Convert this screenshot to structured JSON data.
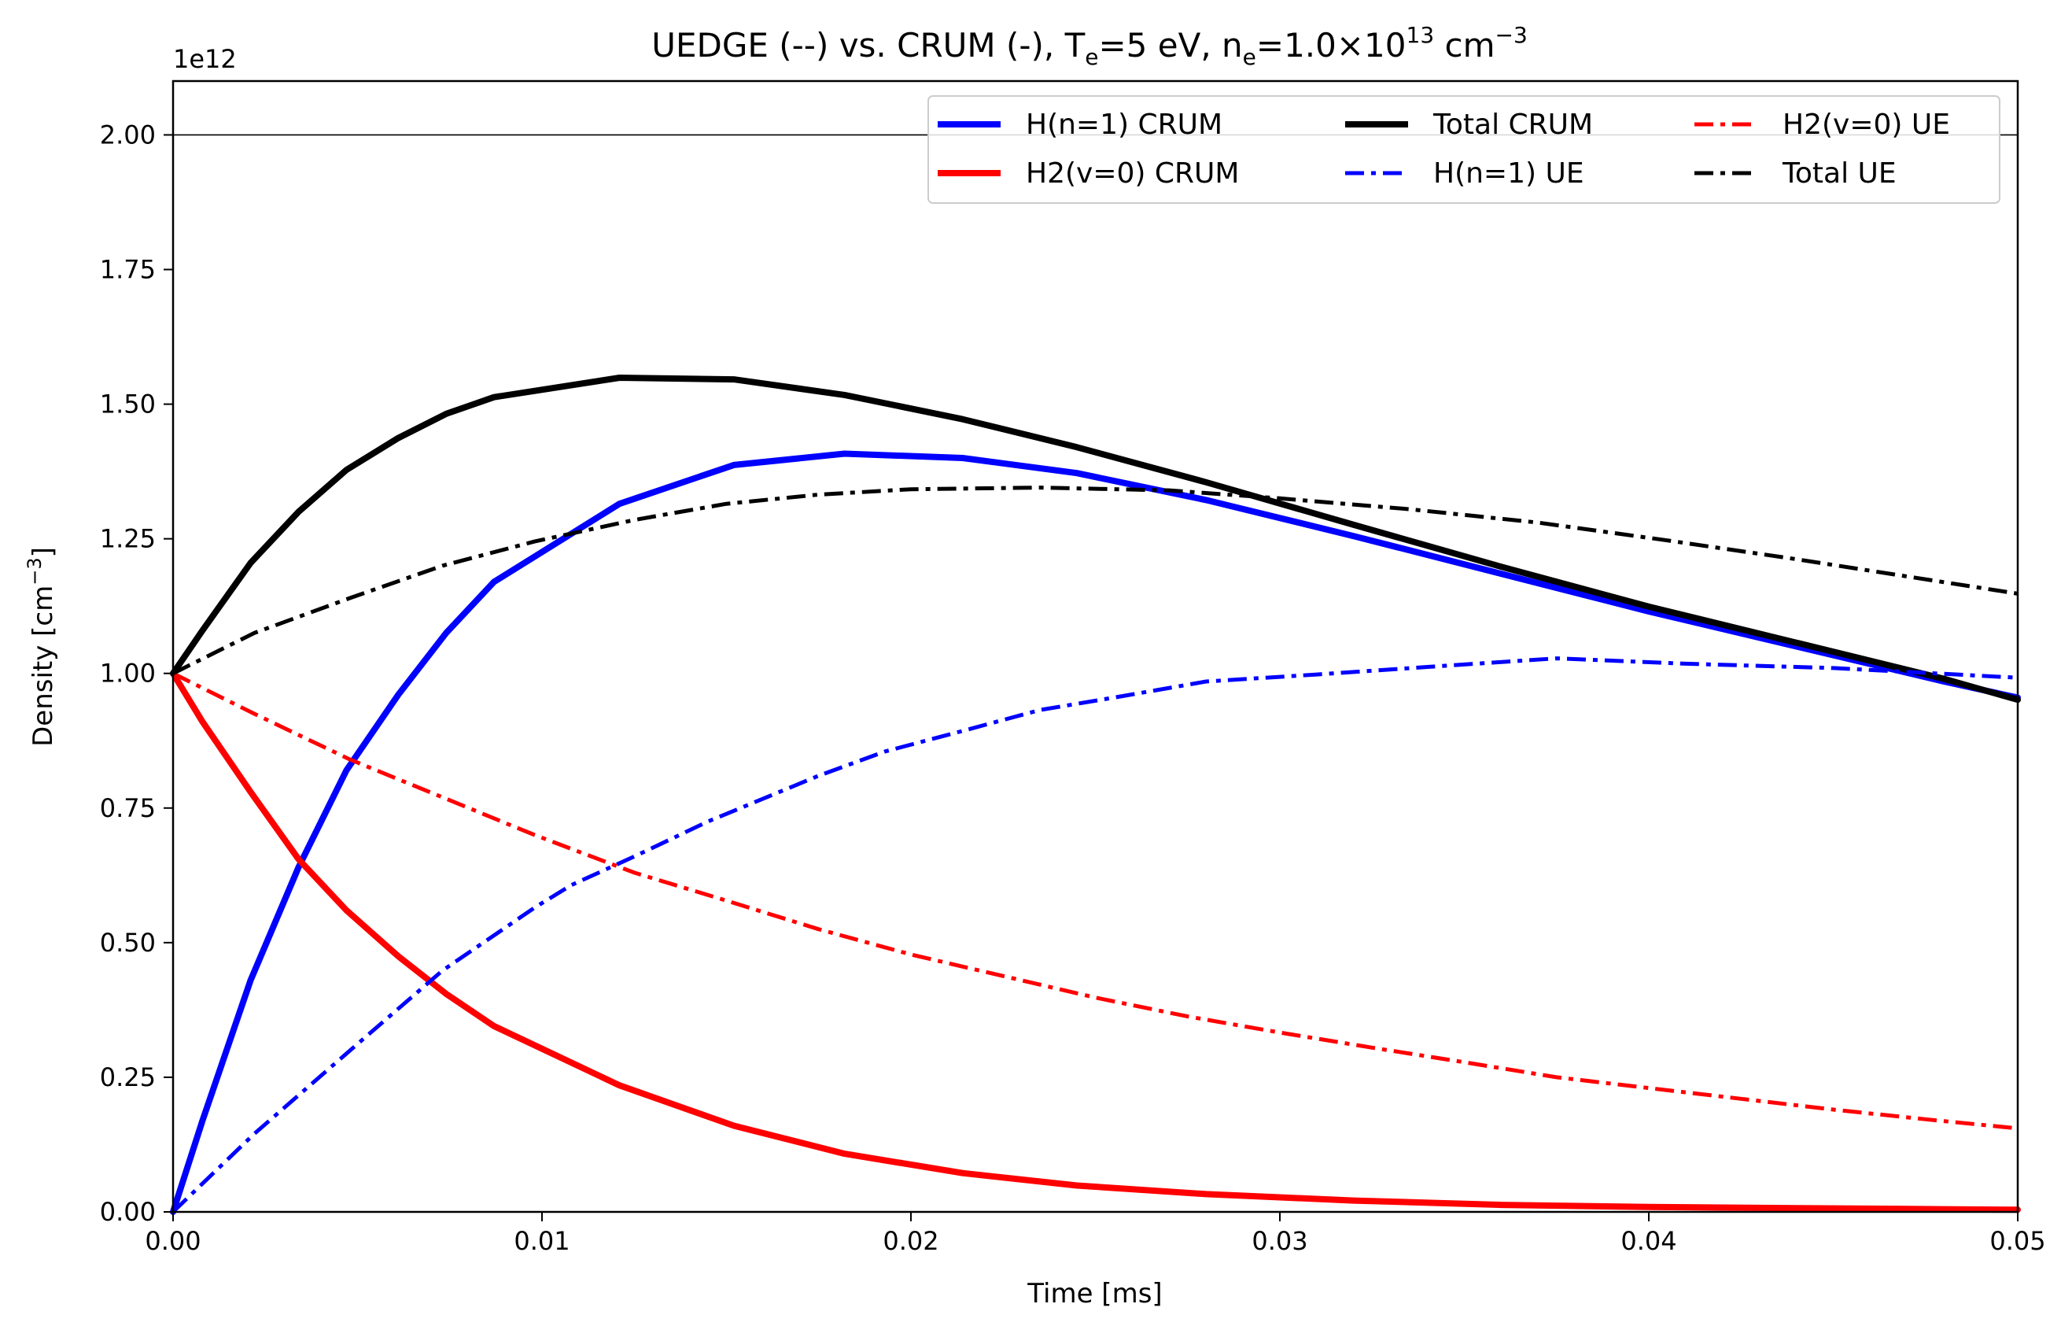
{
  "chart_data": {
    "type": "line",
    "title": "UEDGE (--) vs. CRUM (-),  T",
    "title_parts": {
      "main": "UEDGE (--) vs. CRUM (-),  T",
      "te_sub": "e",
      "te_val": "=5 eV, n",
      "ne_sub": "e",
      "ne_val": "=1.0×10",
      "ne_exp": "13",
      "ne_unit": " cm",
      "ne_unit_exp": "−3"
    },
    "xlabel": "Time [ms]",
    "ylabel": "Density [cm",
    "ylabel_exp": "−3",
    "ylabel_close": "]",
    "offset_label": "1e12",
    "xlim": [
      0,
      0.05
    ],
    "ylim": [
      0,
      2.1
    ],
    "xticks": [
      0,
      0.01,
      0.02,
      0.03,
      0.04,
      0.05
    ],
    "xtick_labels": [
      "0.00",
      "0.01",
      "0.02",
      "0.03",
      "0.04",
      "0.05"
    ],
    "yticks": [
      0,
      0.25,
      0.5,
      0.75,
      1.0,
      1.25,
      1.5,
      1.75,
      2.0
    ],
    "ytick_labels": [
      "0.00",
      "0.25",
      "0.50",
      "0.75",
      "1.00",
      "1.25",
      "1.50",
      "1.75",
      "2.00"
    ],
    "hline": 2.0,
    "legend_placement": "top-right",
    "series": [
      {
        "name": "H(n=1) CRUM",
        "color": "#0000ff",
        "style": "solid",
        "width": 8,
        "x": [
          0,
          0.0008,
          0.0021,
          0.0034,
          0.0047,
          0.0061,
          0.0074,
          0.0087,
          0.0121,
          0.0152,
          0.0182,
          0.0214,
          0.0245,
          0.028,
          0.032,
          0.036,
          0.04,
          0.044,
          0.048,
          0.05
        ],
        "y": [
          0.0,
          0.17,
          0.43,
          0.64,
          0.82,
          0.96,
          1.075,
          1.17,
          1.315,
          1.387,
          1.408,
          1.4,
          1.372,
          1.322,
          1.255,
          1.185,
          1.115,
          1.05,
          0.985,
          0.955
        ]
      },
      {
        "name": "H2(v=0) CRUM",
        "color": "#ff0000",
        "style": "solid",
        "width": 8,
        "x": [
          0,
          0.0008,
          0.0021,
          0.0034,
          0.0047,
          0.0061,
          0.0074,
          0.0087,
          0.0121,
          0.0152,
          0.0182,
          0.0214,
          0.0245,
          0.028,
          0.032,
          0.036,
          0.04,
          0.044,
          0.048,
          0.05
        ],
        "y": [
          1.0,
          0.91,
          0.78,
          0.655,
          0.56,
          0.475,
          0.405,
          0.345,
          0.235,
          0.16,
          0.108,
          0.072,
          0.049,
          0.033,
          0.021,
          0.013,
          0.009,
          0.007,
          0.005,
          0.004
        ]
      },
      {
        "name": "Total CRUM",
        "color": "#000000",
        "style": "solid",
        "width": 8,
        "x": [
          0,
          0.0008,
          0.0021,
          0.0034,
          0.0047,
          0.0061,
          0.0074,
          0.0087,
          0.0121,
          0.0152,
          0.0182,
          0.0214,
          0.0245,
          0.028,
          0.032,
          0.036,
          0.04,
          0.044,
          0.048,
          0.05
        ],
        "y": [
          1.0,
          1.08,
          1.205,
          1.3,
          1.378,
          1.437,
          1.482,
          1.513,
          1.549,
          1.546,
          1.517,
          1.472,
          1.42,
          1.355,
          1.276,
          1.198,
          1.124,
          1.057,
          0.99,
          0.951
        ]
      },
      {
        "name": "H(n=1) UE",
        "color": "#0000ff",
        "style": "dashdot",
        "width": 5,
        "x": [
          0,
          0.0022,
          0.0048,
          0.0073,
          0.0098,
          0.0108,
          0.0125,
          0.0145,
          0.0175,
          0.0193,
          0.0215,
          0.0235,
          0.0255,
          0.028,
          0.031,
          0.034,
          0.0375,
          0.041,
          0.045,
          0.05
        ],
        "y": [
          0.0,
          0.145,
          0.3,
          0.448,
          0.565,
          0.607,
          0.66,
          0.725,
          0.81,
          0.855,
          0.895,
          0.932,
          0.955,
          0.985,
          0.998,
          1.012,
          1.028,
          1.018,
          1.01,
          0.992
        ]
      },
      {
        "name": "H2(v=0) UE",
        "color": "#ff0000",
        "style": "dashdot",
        "width": 5,
        "x": [
          0,
          0.0022,
          0.0048,
          0.0073,
          0.0098,
          0.0125,
          0.015,
          0.0175,
          0.02,
          0.0225,
          0.025,
          0.0275,
          0.03,
          0.0325,
          0.035,
          0.0375,
          0.04,
          0.0425,
          0.045,
          0.0475,
          0.05
        ],
        "y": [
          1.0,
          0.925,
          0.84,
          0.77,
          0.7,
          0.63,
          0.578,
          0.525,
          0.478,
          0.438,
          0.398,
          0.363,
          0.333,
          0.305,
          0.278,
          0.25,
          0.23,
          0.21,
          0.19,
          0.172,
          0.155
        ]
      },
      {
        "name": "Total UE",
        "color": "#000000",
        "style": "dashdot",
        "width": 5,
        "x": [
          0,
          0.0022,
          0.0048,
          0.0073,
          0.0098,
          0.0125,
          0.015,
          0.0175,
          0.02,
          0.0235,
          0.027,
          0.03,
          0.0335,
          0.037,
          0.0405,
          0.044,
          0.047,
          0.05
        ],
        "y": [
          1.0,
          1.075,
          1.14,
          1.2,
          1.245,
          1.285,
          1.315,
          1.332,
          1.342,
          1.345,
          1.34,
          1.325,
          1.305,
          1.28,
          1.247,
          1.212,
          1.18,
          1.148
        ]
      }
    ]
  }
}
